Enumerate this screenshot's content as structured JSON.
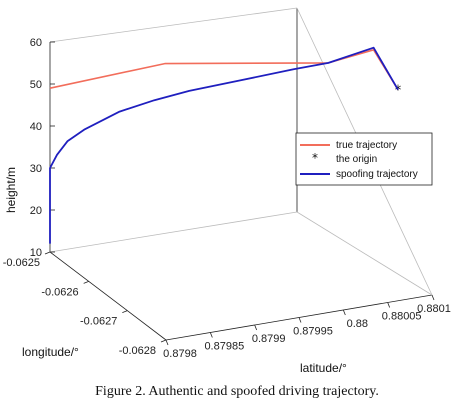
{
  "caption": "Figure 2.    Authentic and spoofed driving trajectory.",
  "chart_data": {
    "type": "line3d",
    "xlabel": "latitude/°",
    "ylabel": "longitude/°",
    "zlabel": "height/m",
    "x_ticks": [
      "0.8798",
      "0.87985",
      "0.8799",
      "0.87995",
      "0.88",
      "0.88005",
      "0.8801"
    ],
    "y_ticks": [
      "-0.0625",
      "-0.0626",
      "-0.0627",
      "-0.0628"
    ],
    "z_ticks": [
      "60",
      "50",
      "40",
      "30",
      "20",
      "10"
    ],
    "zlim": [
      10,
      60
    ],
    "grid": false,
    "legend_position": "right",
    "series": [
      {
        "name": "true trajectory",
        "color": "#f26d5b",
        "style": "line",
        "points": [
          {
            "t": 0.0,
            "z": 49.0
          },
          {
            "t": 0.33,
            "z": 52.5
          },
          {
            "t": 0.8,
            "z": 49.3
          },
          {
            "t": 0.93,
            "z": 51.5
          },
          {
            "t": 1.0,
            "z": 41.5
          }
        ]
      },
      {
        "name": "the origin",
        "color": "#111111",
        "style": "marker",
        "points": [
          {
            "t": 1.0,
            "z": 41.5
          }
        ]
      },
      {
        "name": "spoofing trajectory",
        "color": "#1f1fbf",
        "style": "line",
        "points": [
          {
            "t": 0.0,
            "z": 12.0
          },
          {
            "t": 0.0,
            "z": 30.0
          },
          {
            "t": 0.02,
            "z": 33.0
          },
          {
            "t": 0.05,
            "z": 36.0
          },
          {
            "t": 0.1,
            "z": 38.5
          },
          {
            "t": 0.2,
            "z": 42.0
          },
          {
            "t": 0.3,
            "z": 44.0
          },
          {
            "t": 0.4,
            "z": 45.5
          },
          {
            "t": 0.55,
            "z": 47.0
          },
          {
            "t": 0.7,
            "z": 48.5
          },
          {
            "t": 0.8,
            "z": 49.3
          },
          {
            "t": 0.93,
            "z": 52.0
          },
          {
            "t": 1.0,
            "z": 41.5
          }
        ]
      }
    ]
  }
}
